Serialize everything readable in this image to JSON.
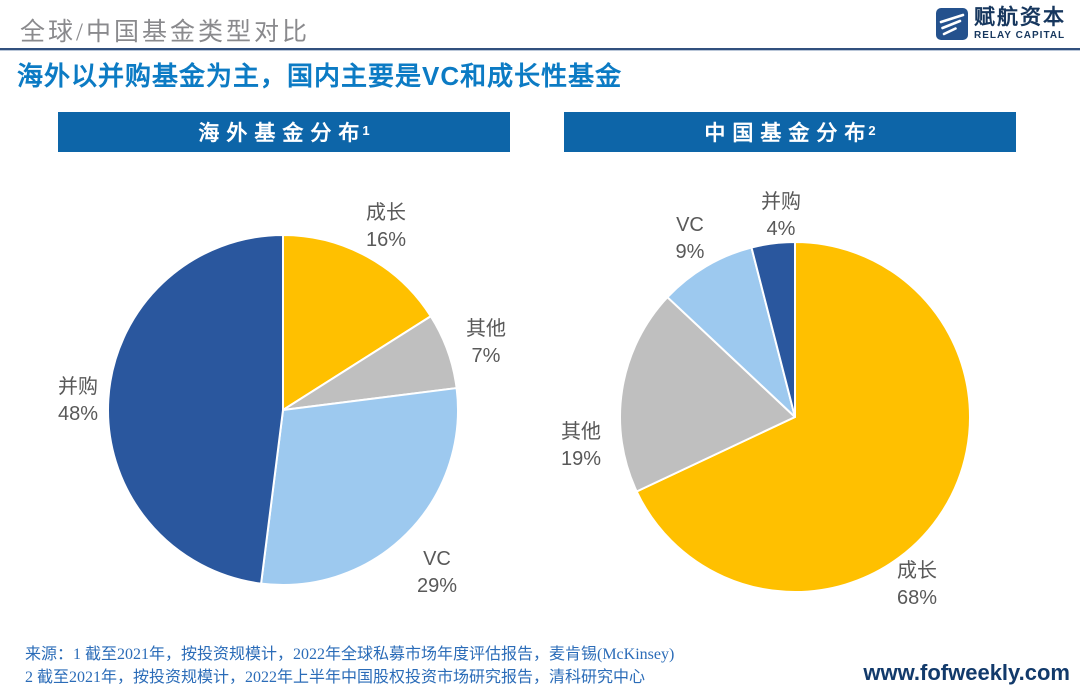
{
  "page": {
    "title": "全球/中国基金类型对比",
    "subtitle": "海外以并购基金为主，国内主要是VC和成长性基金",
    "website": "www.fofweekly.com"
  },
  "logo": {
    "name_cn": "赋航资本",
    "name_en": "RELAY CAPITAL"
  },
  "source": {
    "line1": "来源：1 截至2021年，按投资规模计，2022年全球私募市场年度评估报告，麦肯锡(McKinsey)",
    "line2": "2 截至2021年，按投资规模计，2022年上半年中国股权投资市场研究报告，清科研究中心"
  },
  "colors": {
    "growth": "#FFC000",
    "other": "#BFBFBF",
    "vc": "#9DC9EF",
    "buyout": "#2A579E",
    "header_bar": "#0D65A8",
    "subtitle_blue": "#0C7BC4",
    "label_gray": "#595959",
    "logo_navy": "#24518D"
  },
  "chart_data": [
    {
      "type": "pie",
      "title": "海外基金分布",
      "footnote_ref": "1",
      "start_angle_deg": 0,
      "direction": "clockwise",
      "legend": "none",
      "slices": [
        {
          "label": "成长",
          "value": 16,
          "display": "16%",
          "color": "#FFC000"
        },
        {
          "label": "其他",
          "value": 7,
          "display": "7%",
          "color": "#BFBFBF"
        },
        {
          "label": "VC",
          "value": 29,
          "display": "29%",
          "color": "#9DC9EF"
        },
        {
          "label": "并购",
          "value": 48,
          "display": "48%",
          "color": "#2A579E"
        }
      ]
    },
    {
      "type": "pie",
      "title": "中国基金分布",
      "footnote_ref": "2",
      "start_angle_deg": 0,
      "direction": "clockwise",
      "legend": "none",
      "slices": [
        {
          "label": "成长",
          "value": 68,
          "display": "68%",
          "color": "#FFC000"
        },
        {
          "label": "其他",
          "value": 19,
          "display": "19%",
          "color": "#BFBFBF"
        },
        {
          "label": "VC",
          "value": 9,
          "display": "9%",
          "color": "#9DC9EF"
        },
        {
          "label": "并购",
          "value": 4,
          "display": "4%",
          "color": "#2A579E"
        }
      ]
    }
  ]
}
